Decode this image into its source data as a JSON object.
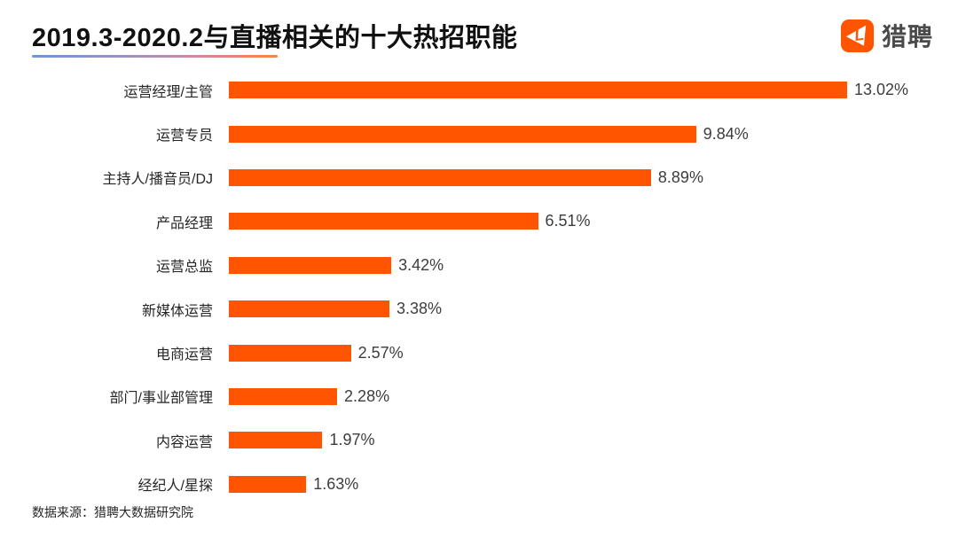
{
  "header": {
    "title": "2019.3-2020.2与直播相关的十大热招职能",
    "logo_text": "猎聘"
  },
  "colors": {
    "bar": "#FF5500",
    "logo_orange": "#FF5500",
    "title_text": "#111111",
    "underline_gradient": [
      "#6699D6",
      "#9A90CA",
      "#D287A4",
      "#F58544"
    ]
  },
  "chart_data": {
    "type": "bar",
    "orientation": "horizontal",
    "title": "2019.3-2020.2与直播相关的十大热招职能",
    "categories": [
      "运营经理/主管",
      "运营专员",
      "主持人/播音员/DJ",
      "产品经理",
      "运营总监",
      "新媒体运营",
      "电商运营",
      "部门/事业部管理",
      "内容运营",
      "经纪人/星探"
    ],
    "values": [
      13.02,
      9.84,
      8.89,
      6.51,
      3.42,
      3.38,
      2.57,
      2.28,
      1.97,
      1.63
    ],
    "value_labels": [
      "13.02%",
      "9.84%",
      "8.89%",
      "6.51%",
      "3.42%",
      "3.38%",
      "2.57%",
      "2.28%",
      "1.97%",
      "1.63%"
    ],
    "xlabel": "",
    "ylabel": "",
    "xlim": [
      0,
      13.02
    ],
    "grid": false,
    "legend": false,
    "bar_color": "#FF5500"
  },
  "footer": {
    "source": "数据来源：猎聘大数据研究院"
  }
}
